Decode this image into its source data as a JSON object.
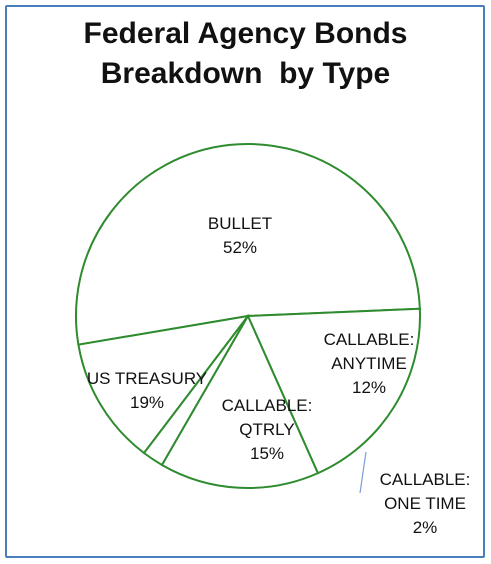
{
  "title_lines": [
    "Federal Agency Bonds",
    "Breakdown  by Type"
  ],
  "colors": {
    "border": "#4a7ebb",
    "slice_stroke": "#2e8b2e",
    "slice_fill": "#ffffff",
    "leader": "#7a9fd8"
  },
  "chart_data": {
    "type": "pie",
    "title": "Federal Agency Bonds Breakdown  by Type",
    "slices": [
      {
        "name": "BULLET",
        "percent": "52%",
        "value": 52
      },
      {
        "name": "CALLABLE: ANYTIME",
        "percent": "12%",
        "value": 12
      },
      {
        "name": "CALLABLE: ONE TIME",
        "percent": "2%",
        "value": 2
      },
      {
        "name": "CALLABLE: QTRLY",
        "percent": "15%",
        "value": 15
      },
      {
        "name": "US TREASURY",
        "percent": "19%",
        "value": 19
      }
    ]
  }
}
